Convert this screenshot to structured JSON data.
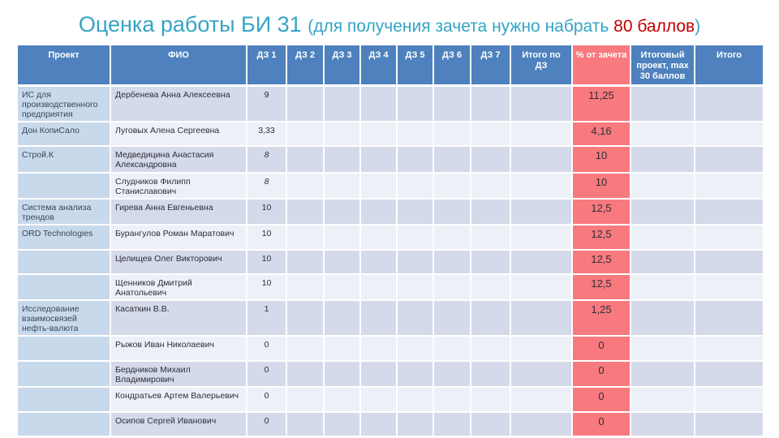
{
  "title": {
    "main": "Оценка работы БИ 31 ",
    "paren_open": "(для получения зачета нужно набрать ",
    "highlight": "80 баллов",
    "paren_close": ")"
  },
  "colors": {
    "title_teal": "#35a4c4",
    "title_red": "#c00000",
    "header_blue": "#4e81bd",
    "accent_red": "#f8797e",
    "band_dark": "#d4dae9",
    "band_light": "#edf0f7",
    "project_column": "#c9d9ec"
  },
  "table": {
    "headers": [
      "Проект",
      "ФИО",
      "ДЗ 1",
      "ДЗ 2",
      "ДЗ 3",
      "ДЗ 4",
      "ДЗ 5",
      "ДЗ 6",
      "ДЗ 7",
      "Итого по ДЗ",
      "% от зачета",
      "Итоговый проект, max 30 баллов",
      "Итого"
    ],
    "rows": [
      {
        "project": "ИС для производственного предприятия",
        "name": "Дербенева Анна Алексеевна",
        "dz1": "9",
        "dz1_italic": false,
        "percent": "11,25"
      },
      {
        "project": "Дон КопиСало",
        "name": "Луговых Алена Сергеевна",
        "dz1": "3,33",
        "dz1_italic": false,
        "percent": "4,16"
      },
      {
        "project": "Строй.К",
        "name": "Медведицина Анастасия Александровна",
        "dz1": "8",
        "dz1_italic": true,
        "percent": "10"
      },
      {
        "project": "",
        "name": "Слудников Филипп Станиславович",
        "dz1": "8",
        "dz1_italic": true,
        "percent": "10"
      },
      {
        "project": "Система анализа трендов",
        "name": "Гирева Анна Евгеньевна",
        "dz1": "10",
        "dz1_italic": false,
        "percent": "12,5"
      },
      {
        "project": "ORD Technologies",
        "name": "Бурангулов Роман Маратович",
        "dz1": "10",
        "dz1_italic": false,
        "percent": "12,5"
      },
      {
        "project": "",
        "name": "Целищев Олег Викторович",
        "dz1": "10",
        "dz1_italic": false,
        "percent": "12,5"
      },
      {
        "project": "",
        "name": "Щенников Дмитрий Анатольевич",
        "dz1": "10",
        "dz1_italic": false,
        "percent": "12,5"
      },
      {
        "project": "Исследование взаимосвязей нефть-валюта",
        "name": "Касаткин В.В.",
        "dz1": "1",
        "dz1_italic": false,
        "percent": "1,25"
      },
      {
        "project": "",
        "name": "Рыжов Иван Николаевич",
        "dz1": "0",
        "dz1_italic": false,
        "percent": "0"
      },
      {
        "project": "",
        "name": "Бердников Михаил Владимирович",
        "dz1": "0",
        "dz1_italic": false,
        "percent": "0"
      },
      {
        "project": "",
        "name": "Кондратьев Артем Валерьевич",
        "dz1": "0",
        "dz1_italic": false,
        "percent": "0"
      },
      {
        "project": "",
        "name": "Осипов Сергей Иванович",
        "dz1": "0",
        "dz1_italic": false,
        "percent": "0"
      }
    ]
  }
}
